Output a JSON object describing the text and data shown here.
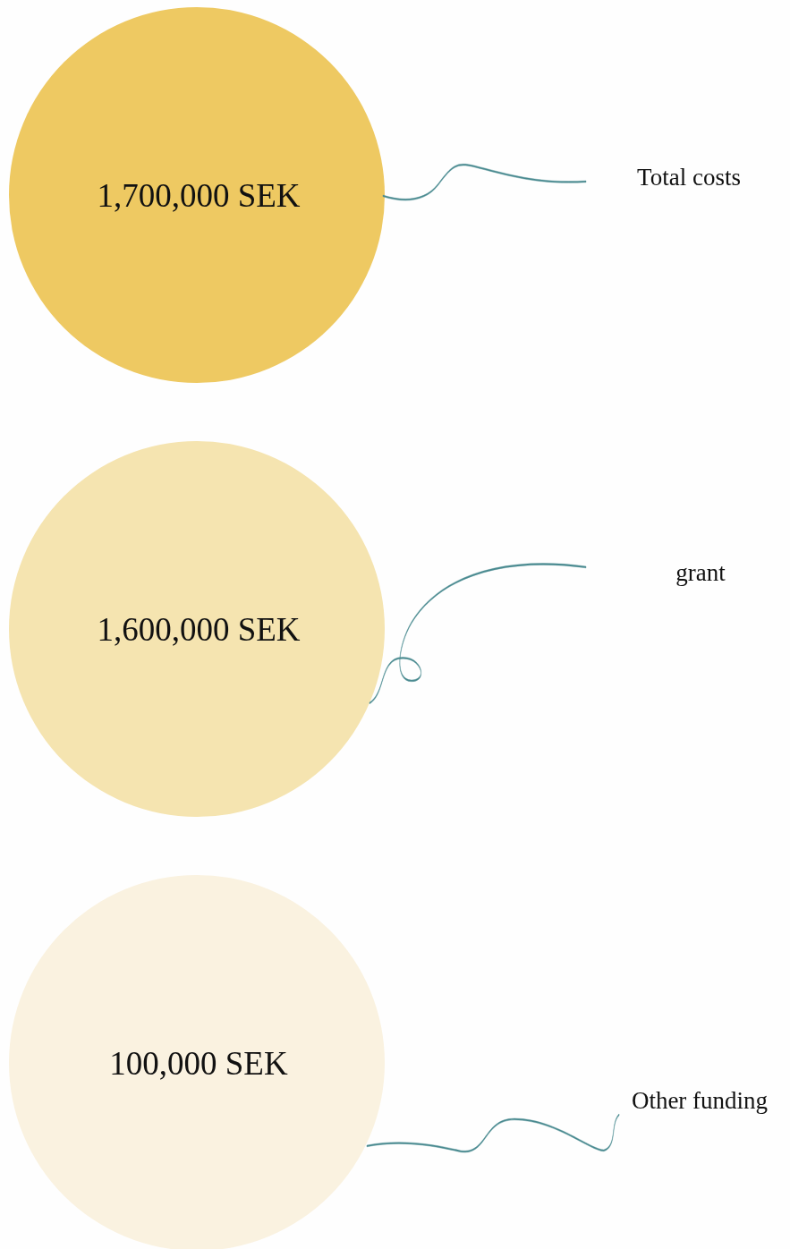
{
  "chart_data": {
    "type": "other",
    "categories": [
      "Total costs",
      "grant",
      "Other funding"
    ],
    "values": [
      1700000,
      1600000,
      100000
    ],
    "value_labels": [
      "1,700,000 SEK",
      "1,600,000 SEK",
      "100,000 SEK"
    ],
    "colors": [
      "#eec962",
      "#f5e4b0",
      "#faf2e0"
    ]
  }
}
